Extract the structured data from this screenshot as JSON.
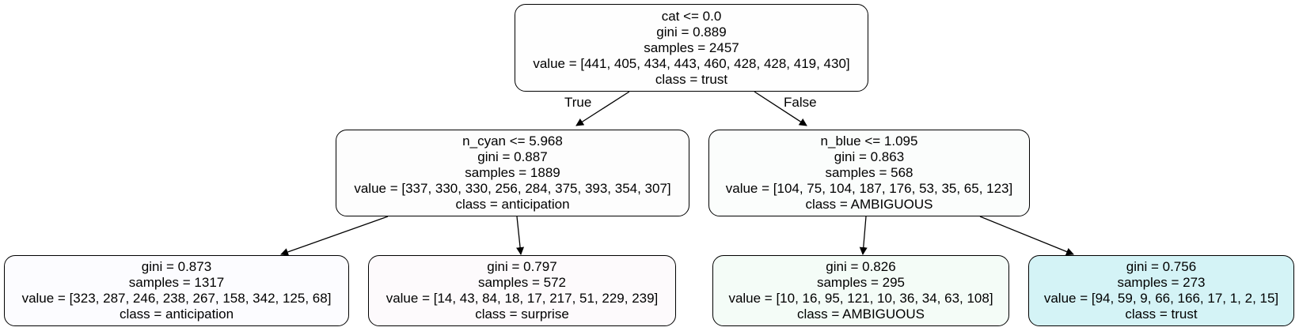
{
  "tree": {
    "nodes": [
      {
        "id": "root",
        "split": "cat <= 0.0",
        "gini": "gini = 0.889",
        "samples": "samples = 2457",
        "value": "value = [441, 405, 434, 443, 460, 428, 428, 419, 430]",
        "class": "class = trust",
        "fill": "#fefefe"
      },
      {
        "id": "left",
        "split": "n_cyan <= 5.968",
        "gini": "gini = 0.887",
        "samples": "samples = 1889",
        "value": "value = [337, 330, 330, 256, 284, 375, 393, 354, 307]",
        "class": "class = anticipation",
        "fill": "#fdfdfd"
      },
      {
        "id": "right",
        "split": "n_blue <= 1.095",
        "gini": "gini = 0.863",
        "samples": "samples = 568",
        "value": "value = [104, 75, 104, 187, 176, 53, 35, 65, 123]",
        "class": "class = AMBIGUOUS",
        "fill": "#fbfdfc"
      },
      {
        "id": "leaf1",
        "split": "",
        "gini": "gini = 0.873",
        "samples": "samples = 1317",
        "value": "value = [323, 287, 246, 238, 267, 158, 342, 125, 68]",
        "class": "class = anticipation",
        "fill": "#fcfcff"
      },
      {
        "id": "leaf2",
        "split": "",
        "gini": "gini = 0.797",
        "samples": "samples = 572",
        "value": "value = [14, 43, 84, 18, 17, 217, 51, 229, 239]",
        "class": "class = surprise",
        "fill": "#fdfafc"
      },
      {
        "id": "leaf3",
        "split": "",
        "gini": "gini = 0.826",
        "samples": "samples = 295",
        "value": "value = [10, 16, 95, 121, 10, 36, 34, 63, 108]",
        "class": "class = AMBIGUOUS",
        "fill": "#f4fcf7"
      },
      {
        "id": "leaf4",
        "split": "",
        "gini": "gini = 0.756",
        "samples": "samples = 273",
        "value": "value = [94, 59, 9, 66, 166, 17, 1, 2, 15]",
        "class": "class = trust",
        "fill": "#d4f3f6"
      }
    ],
    "edge_labels": {
      "true": "True",
      "false": "False"
    }
  }
}
